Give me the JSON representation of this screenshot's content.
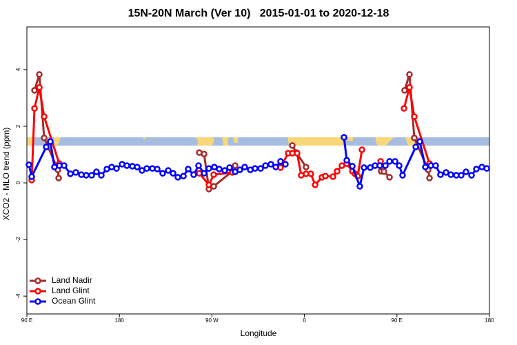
{
  "chart_data": {
    "type": "line",
    "title": "15N-20N March (Ver 10)   2015-01-01 to 2020-12-18",
    "xlabel": "Longitude",
    "ylabel": "XCO2 - MLO trend (ppm)",
    "xlim": [
      90,
      540
    ],
    "ylim": [
      -4.63,
      5.51
    ],
    "xticks": [
      {
        "value": 90,
        "label": "90 E"
      },
      180,
      {
        "value": 270,
        "label": "90 W"
      },
      {
        "value": 360,
        "label": "0"
      },
      {
        "value": 450,
        "label": "90 E"
      },
      {
        "value": 540,
        "label": "180"
      }
    ],
    "yticks": [
      -4,
      -2,
      0,
      2,
      4
    ],
    "grid": false,
    "legend": "lower left",
    "series": [
      {
        "name": "Land Nadir",
        "color": "#a52a2a",
        "x": [
          97.4,
          102.1,
          106.8,
          120.2,
          120.9,
          180,
          257.7,
          262.4,
          267.1,
          271.8,
          289.9,
          292.6,
          310,
          348.2,
          352.2,
          361.6,
          400,
          434.7,
          437.4,
          442.8,
          450,
          457.5,
          462.2,
          466.9,
          480.4,
          481.7
        ],
        "values": [
          3.27,
          3.83,
          1.59,
          0.46,
          0.17,
          null,
          1.07,
          1.02,
          -0.22,
          -0.12,
          0.41,
          0.61,
          null,
          1.32,
          1.07,
          0.56,
          null,
          0.41,
          0.4,
          0.2,
          null,
          3.27,
          3.83,
          1.59,
          0.46,
          0.17
        ]
      },
      {
        "name": "Land Glint",
        "color": "#ff0000",
        "x": [
          94.7,
          97.4,
          102.1,
          106.8,
          121.5,
          170,
          257.7,
          267.1,
          271.8,
          289.9,
          310,
          336.8,
          344.2,
          348.2,
          352.9,
          356.9,
          361.6,
          366.3,
          370.4,
          377.1,
          380.4,
          387.8,
          391.8,
          396.5,
          401.2,
          406.6,
          409.3,
          411.9,
          416,
          420,
          434.1,
          440,
          456.9,
          462.2,
          466.9,
          481.7
        ],
        "values": [
          0.1,
          2.63,
          3.37,
          2.34,
          0.68,
          null,
          0.34,
          -0.07,
          0.29,
          0.37,
          null,
          0.54,
          1.05,
          1.05,
          1.05,
          0.27,
          0.32,
          0.32,
          -0.07,
          0.2,
          0.24,
          0.22,
          0.41,
          0.61,
          0.68,
          0.41,
          0.32,
          0.24,
          1.17,
          null,
          0.76,
          null,
          2.63,
          3.37,
          2.34,
          0.68
        ]
      },
      {
        "name": "Ocean Glint",
        "color": "#0000ff",
        "x": [
          92,
          94.7,
          108.8,
          112.8,
          116.8,
          121.5,
          126.2,
          132.3,
          137.6,
          143,
          147.7,
          153,
          157.7,
          162.4,
          167.8,
          172.5,
          177.2,
          182.6,
          187.3,
          192.6,
          197.3,
          202,
          206.7,
          212.1,
          216.8,
          222.1,
          227.5,
          232.2,
          236.9,
          242.3,
          246.9,
          252.3,
          257,
          262.4,
          267.1,
          272.4,
          277.1,
          282.5,
          287.2,
          292.6,
          297.2,
          301.9,
          307.3,
          312,
          317.4,
          322.1,
          327.4,
          332.1,
          336.8,
          341.5,
          370,
          398.5,
          401.2,
          406.6,
          413.9,
          418,
          424,
          428.7,
          433.4,
          438.8,
          442.8,
          448.2,
          452.2,
          455.5,
          468.3,
          472.3,
          477.7,
          483,
          487.7,
          492.4,
          497.8,
          502.5,
          507.8,
          512.5,
          517.2,
          522.6,
          527.3,
          532.7,
          537.4
        ],
        "values": [
          0.64,
          0.22,
          1.27,
          1.46,
          0.56,
          0.61,
          0.61,
          0.32,
          0.37,
          0.29,
          0.27,
          0.27,
          0.39,
          0.27,
          0.49,
          0.56,
          0.51,
          0.66,
          0.61,
          0.59,
          0.56,
          0.44,
          0.51,
          0.51,
          0.49,
          0.34,
          0.44,
          0.34,
          0.2,
          0.24,
          0.49,
          0.29,
          0.61,
          0.34,
          0.51,
          0.56,
          0.49,
          0.44,
          0.54,
          0.39,
          0.46,
          0.56,
          0.46,
          0.51,
          0.51,
          0.61,
          0.66,
          0.56,
          0.76,
          0.66,
          null,
          1.61,
          0.8,
          0.59,
          -0.12,
          0.54,
          0.54,
          0.61,
          0.61,
          0.61,
          0.76,
          0.76,
          0.61,
          0.27,
          1.27,
          1.46,
          0.56,
          0.61,
          0.61,
          0.29,
          0.37,
          0.29,
          0.27,
          0.27,
          0.39,
          0.27,
          0.49,
          0.56,
          0.51
        ]
      }
    ]
  }
}
